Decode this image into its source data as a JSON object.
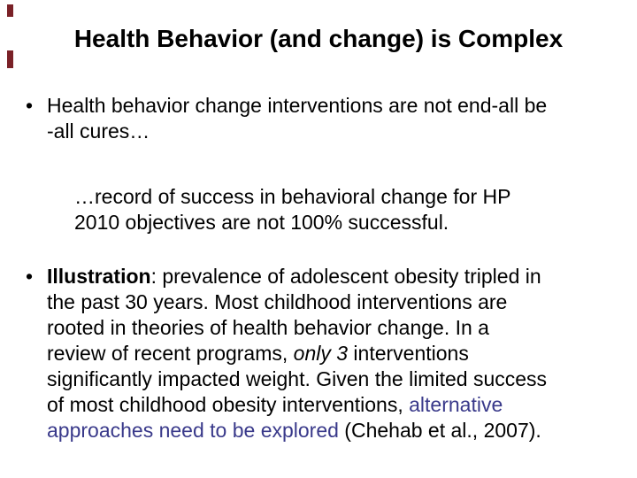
{
  "slide": {
    "title": "Health Behavior (and change) is Complex",
    "accent_color": "#7a2127",
    "link_color": "#39398a",
    "bullets": [
      {
        "marker": "•",
        "lines": [
          [
            {
              "t": "Health behavior change interventions are not end-all be"
            }
          ],
          [
            {
              "t": "-all cures…"
            }
          ]
        ]
      },
      {
        "marker": "•",
        "lines": [
          [
            {
              "t": "Illustration",
              "s": "b"
            },
            {
              "t": ": prevalence of adolescent obesity tripled in"
            }
          ],
          [
            {
              "t": "the past 30 years. Most childhood interventions are"
            }
          ],
          [
            {
              "t": "rooted in theories of health behavior change. In a"
            }
          ],
          [
            {
              "t": "review of recent programs, "
            },
            {
              "t": "only 3",
              "s": "i"
            },
            {
              "t": " interventions"
            }
          ],
          [
            {
              "t": "significantly impacted weight. Given the limited success"
            }
          ],
          [
            {
              "t": "of most childhood obesity interventions, "
            },
            {
              "t": "alternative",
              "s": "link"
            }
          ],
          [
            {
              "t": "approaches need to be explored",
              "s": "link"
            },
            {
              "t": " (Chehab et al., 2007)."
            }
          ]
        ]
      }
    ],
    "sub_paragraph": {
      "lines": [
        [
          {
            "t": "…record of success in behavioral change for HP"
          }
        ],
        [
          {
            "t": "2010 objectives are not 100% successful."
          }
        ]
      ]
    }
  }
}
